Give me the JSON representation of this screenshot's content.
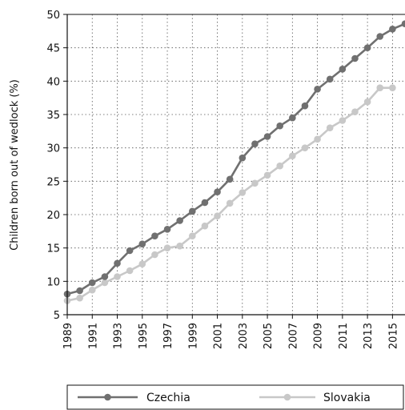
{
  "chart_data": {
    "type": "line",
    "title": "",
    "xlabel": "",
    "ylabel": "Children born out of wedlock (%)",
    "xlim": [
      1989,
      2016
    ],
    "ylim": [
      5,
      50
    ],
    "x_ticks": [
      "1989",
      "1991",
      "1993",
      "1995",
      "1997",
      "1999",
      "2001",
      "2003",
      "2005",
      "2007",
      "2009",
      "2011",
      "2013",
      "2015"
    ],
    "y_ticks": [
      "5",
      "10",
      "15",
      "20",
      "25",
      "30",
      "35",
      "40",
      "45",
      "50"
    ],
    "grid": true,
    "legend_position": "bottom",
    "x": [
      1989,
      1990,
      1991,
      1992,
      1993,
      1994,
      1995,
      1996,
      1997,
      1998,
      1999,
      2000,
      2001,
      2002,
      2003,
      2004,
      2005,
      2006,
      2007,
      2008,
      2009,
      2010,
      2011,
      2012,
      2013,
      2014,
      2015,
      2016
    ],
    "series": [
      {
        "name": "Czechia",
        "color": "#707070",
        "values": [
          8.1,
          8.6,
          9.8,
          10.7,
          12.7,
          14.6,
          15.6,
          16.8,
          17.8,
          19.1,
          20.5,
          21.8,
          23.4,
          25.3,
          28.5,
          30.6,
          31.7,
          33.3,
          34.5,
          36.3,
          38.8,
          40.3,
          41.8,
          43.4,
          45.0,
          46.7,
          47.8,
          48.6
        ]
      },
      {
        "name": "Slovakia",
        "color": "#c8c8c8",
        "values": [
          7.1,
          7.5,
          8.7,
          9.8,
          10.7,
          11.6,
          12.6,
          14.0,
          15.0,
          15.3,
          16.8,
          18.3,
          19.8,
          21.7,
          23.3,
          24.7,
          25.9,
          27.3,
          28.8,
          30.0,
          31.3,
          33.0,
          34.1,
          35.4,
          36.9,
          39.0,
          39.0,
          null
        ]
      }
    ]
  }
}
